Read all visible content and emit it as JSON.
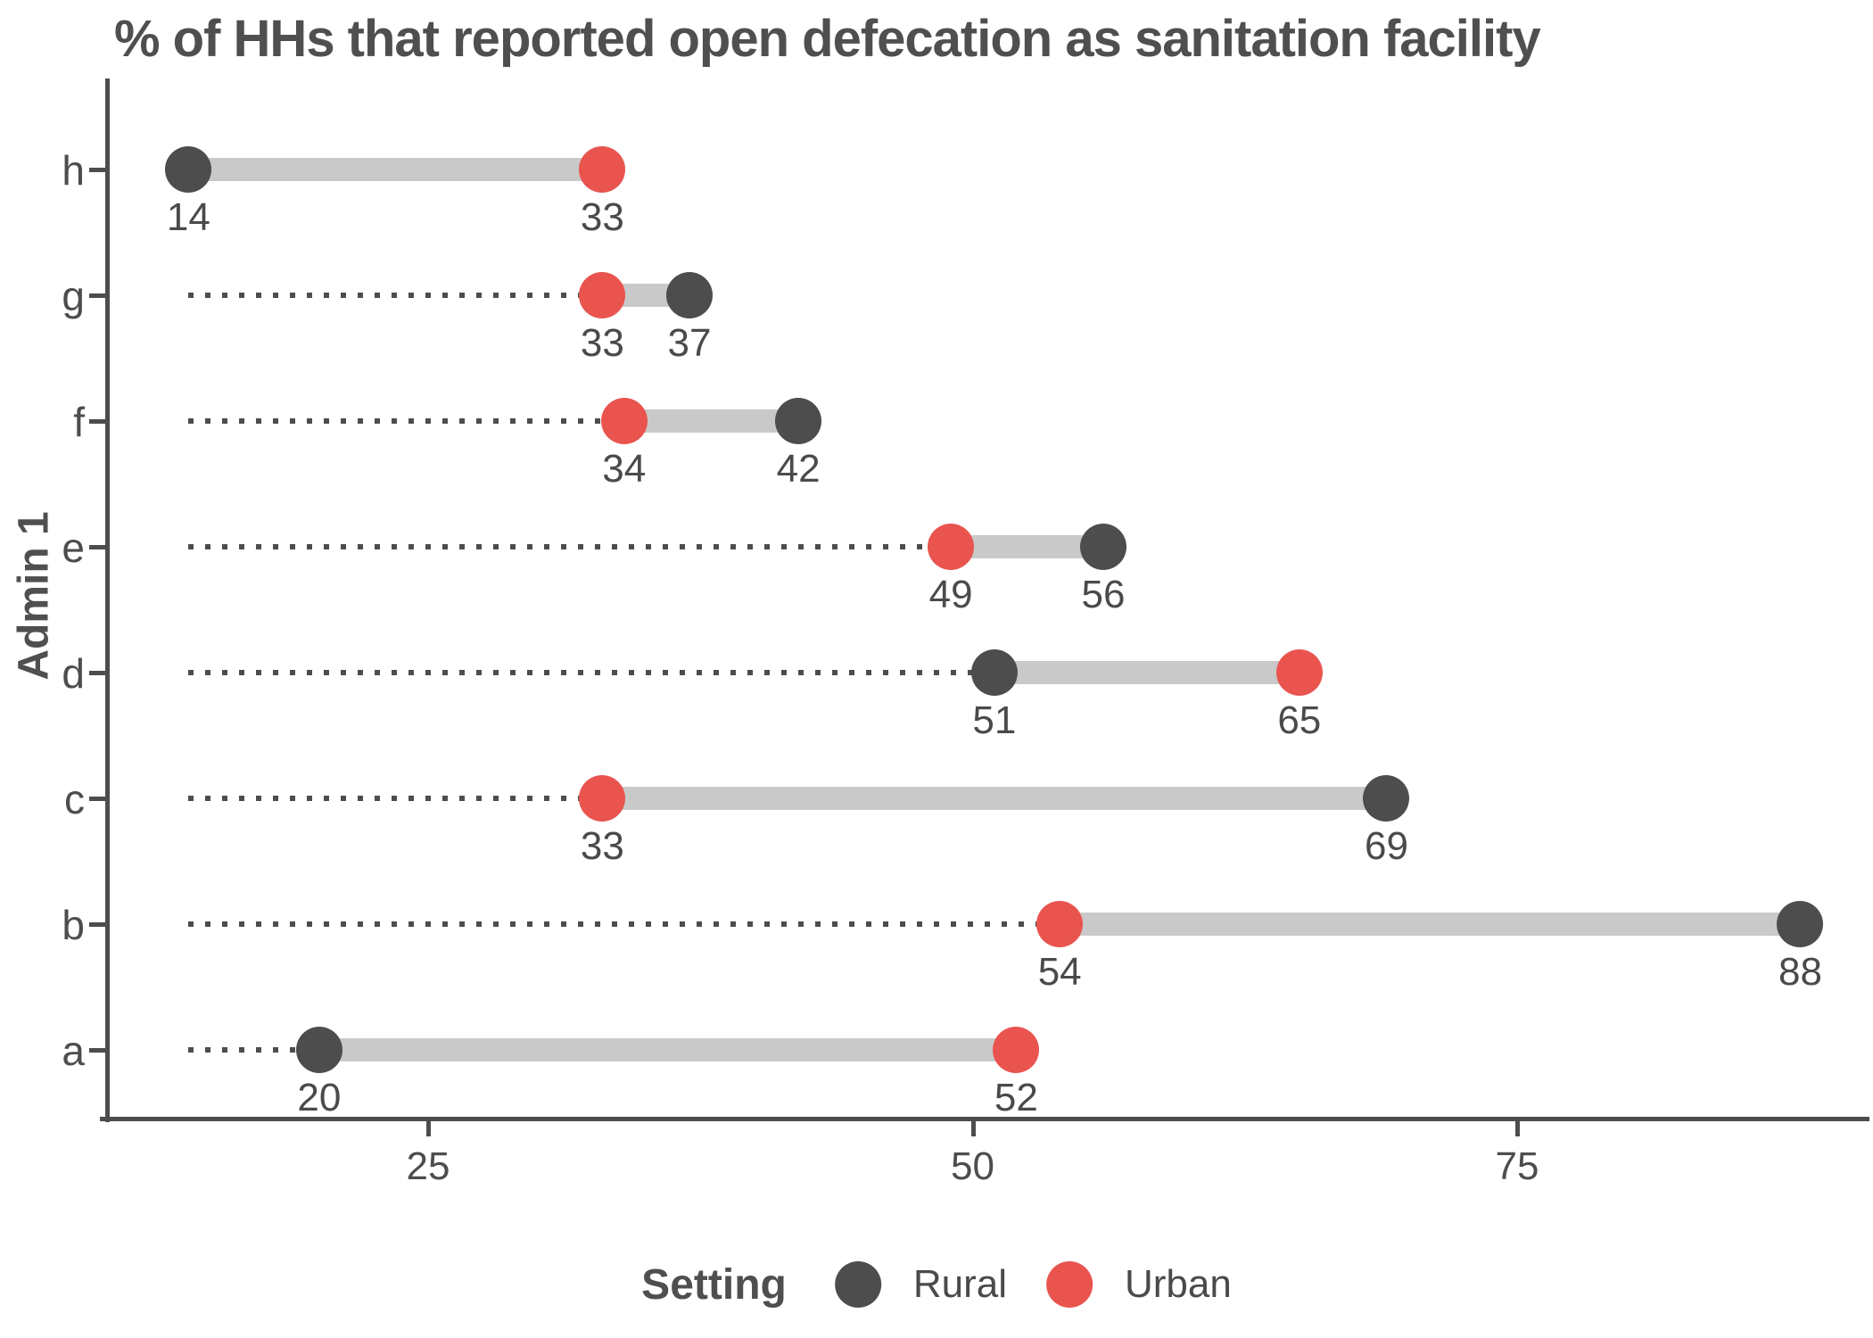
{
  "chart_data": {
    "type": "dumbbell",
    "title": "% of HHs that reported open defecation as sanitation facility",
    "ylabel": "Admin 1",
    "xlabel": "",
    "categories": [
      "h",
      "g",
      "f",
      "e",
      "d",
      "c",
      "b",
      "a"
    ],
    "series": [
      {
        "name": "Rural",
        "color": "#4D4D4D",
        "values": [
          14,
          37,
          42,
          56,
          51,
          69,
          88,
          20
        ]
      },
      {
        "name": "Urban",
        "color": "#E9544F",
        "values": [
          33,
          33,
          34,
          49,
          65,
          33,
          54,
          52
        ]
      }
    ],
    "x_tick_values": [
      25,
      50,
      75
    ],
    "x_tick_labels": [
      "25",
      "50",
      "75"
    ],
    "leader_start_value": 14,
    "legend_title": "Setting",
    "legend_position": "bottom",
    "grid": "off",
    "colors": {
      "rural": "#4D4D4D",
      "urban": "#E9544F",
      "connector": "#C9C9C9",
      "axis": "#4D4D4D",
      "text": "#4F4F4F"
    }
  }
}
